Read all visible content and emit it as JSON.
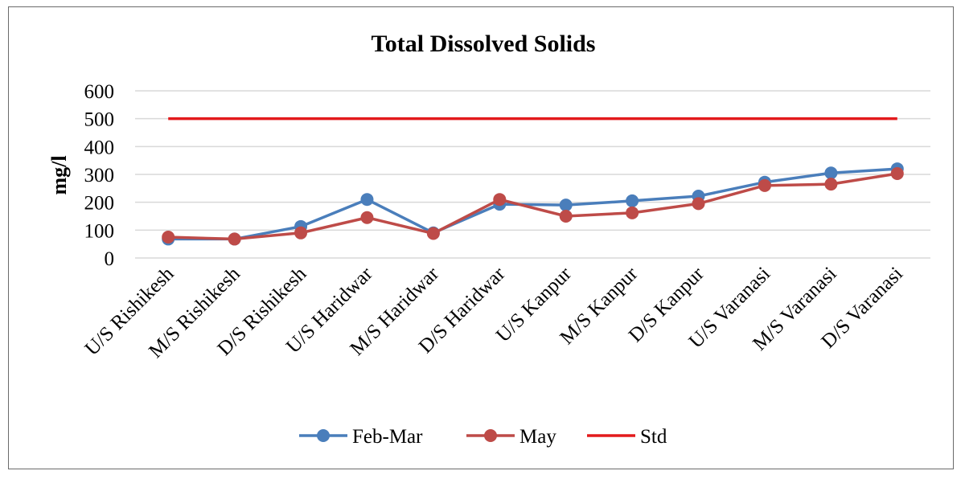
{
  "chart_data": {
    "type": "line",
    "title": "Total Dissolved Solids",
    "xlabel": "",
    "ylabel": "mg/l",
    "ylim": [
      0,
      600
    ],
    "yticks": [
      0,
      100,
      200,
      300,
      400,
      500,
      600
    ],
    "grid": true,
    "legend_position": "bottom",
    "categories": [
      "U/S Rishikesh",
      "M/S Rishikesh",
      "D/S Rishikesh",
      "U/S Haridwar",
      "M/S Haridwar",
      "D/S Haridwar",
      "U/S Kanpur",
      "M/S Kanpur",
      "D/S Kanpur",
      "U/S Varanasi",
      "M/S Varanasi",
      "D/S Varanasi"
    ],
    "series": [
      {
        "name": "Feb-Mar",
        "color": "#4a7ebb",
        "marker": true,
        "values": [
          68,
          68,
          113,
          210,
          90,
          193,
          190,
          205,
          222,
          272,
          305,
          320
        ]
      },
      {
        "name": "May",
        "color": "#be4b48",
        "marker": true,
        "values": [
          75,
          68,
          90,
          145,
          88,
          210,
          150,
          162,
          195,
          260,
          265,
          303
        ]
      },
      {
        "name": "Std",
        "color": "#e31a1c",
        "marker": false,
        "values": [
          500,
          500,
          500,
          500,
          500,
          500,
          500,
          500,
          500,
          500,
          500,
          500
        ]
      }
    ]
  }
}
